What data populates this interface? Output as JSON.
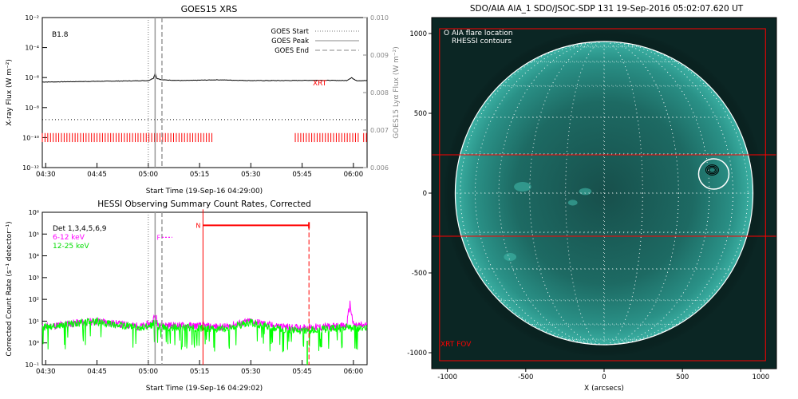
{
  "chart_data": [
    {
      "type": "line",
      "title": "GOES15 XRS",
      "xlabel": "Start Time (19-Sep-16 04:29:00)",
      "ylabel": "X-ray Flux (W m⁻²)",
      "ylabel_right": "GOES15 Lyα Flux (W m⁻²)",
      "y_scale": "log",
      "ylim": [
        1e-12,
        0.01
      ],
      "y_ticks": [
        "10⁻¹²",
        "10⁻¹⁰",
        "10⁻⁸",
        "10⁻⁶",
        "10⁻⁴",
        "10⁻²"
      ],
      "y_ticks_right": [
        "0.006",
        "0.007",
        "0.008",
        "0.009",
        "0.010"
      ],
      "ylim_right": [
        0.006,
        0.01
      ],
      "x_ticks": [
        "04:30",
        "04:45",
        "05:00",
        "05:15",
        "05:30",
        "05:45",
        "06:00"
      ],
      "x_tick_minutes": [
        30,
        45,
        60,
        75,
        90,
        105,
        120
      ],
      "xlim_minutes": [
        29,
        124
      ],
      "annotation_class": "B1.8",
      "annotation_xrt": "XRT",
      "legend": [
        "GOES Start",
        "GOES Peak",
        "GOES End"
      ],
      "legend_placement": "top-right",
      "goes_start_min": 60,
      "goes_peak_min": 62,
      "goes_end_min": 64,
      "xrt_coverage_min": [
        [
          29,
          79
        ],
        [
          103,
          122
        ],
        [
          123,
          124
        ]
      ],
      "series": [
        {
          "values_log10": {
            "x": [
              29,
              35,
              45,
              55,
              60,
              61.5,
              62,
              62.5,
              64,
              70,
              80,
              90,
              100,
              110,
              118,
              119.5,
              120,
              121,
              124
            ],
            "y": [
              -6.3,
              -6.28,
              -6.25,
              -6.22,
              -6.2,
              -6.05,
              -5.7,
              -6.05,
              -6.15,
              -6.2,
              -6.15,
              -6.2,
              -6.2,
              -6.18,
              -6.2,
              -6.0,
              -6.1,
              -6.2,
              -6.2
            ]
          }
        },
        {
          "values_log10": {
            "x": [
              29,
              124
            ],
            "y": [
              -8.8,
              -8.8
            ]
          }
        }
      ]
    },
    {
      "type": "line",
      "title": "HESSI Observing Summary Count Rates, Corrected",
      "xlabel": "Start Time (19-Sep-16 04:29:02)",
      "ylabel": "Corrected Count Rate (s⁻¹ detector⁻¹)",
      "y_scale": "log",
      "ylim": [
        0.1,
        1000000.0
      ],
      "y_ticks": [
        "10⁻¹",
        "10⁰",
        "10¹",
        "10²",
        "10³",
        "10⁴",
        "10⁵",
        "10⁶"
      ],
      "x_ticks": [
        "04:30",
        "04:45",
        "05:00",
        "05:15",
        "05:30",
        "05:45",
        "06:00"
      ],
      "x_tick_minutes": [
        30,
        45,
        60,
        75,
        90,
        105,
        120
      ],
      "xlim_minutes": [
        29,
        124
      ],
      "detectors_label": "Det 1,3,4,5,6,9",
      "flag_F": "F",
      "flag_N": "N",
      "night_start_min": 76,
      "night_end_min": 107,
      "flare_flag_min": [
        64,
        67
      ],
      "goes_start_min": 60,
      "goes_peak_min": 62,
      "goes_end_min": 64,
      "series": [
        {
          "name": "6-12 keV",
          "color": "#ff00ff",
          "values_log10": {
            "x": [
              29,
              38,
              45,
              52,
              58,
              61,
              62,
              63,
              66,
              75,
              82,
              90,
              96,
              102,
              106,
              110,
              118,
              119,
              120,
              124
            ],
            "y": [
              0.72,
              0.9,
              1.0,
              0.85,
              0.75,
              0.9,
              1.25,
              0.85,
              0.8,
              0.78,
              0.72,
              1.0,
              0.8,
              0.7,
              0.7,
              0.72,
              0.78,
              1.8,
              0.8,
              0.8
            ]
          }
        },
        {
          "name": "12-25 keV",
          "color": "#00ff00",
          "values_log10": {
            "x": [
              29,
              38,
              45,
              52,
              58,
              61,
              62,
              63,
              66,
              75,
              82,
              90,
              96,
              102,
              106,
              110,
              118,
              120,
              124
            ],
            "y": [
              0.7,
              0.88,
              0.98,
              0.8,
              0.7,
              0.8,
              0.95,
              0.75,
              0.72,
              0.68,
              0.65,
              0.95,
              0.7,
              0.6,
              0.55,
              0.62,
              0.72,
              0.65,
              0.7
            ]
          }
        }
      ]
    },
    {
      "type": "heatmap",
      "title": "SDO/AIA AIA_1 SDO/JSOC-SDP 131 19-Sep-2016 05:02:07.620 UT",
      "xlabel": "X (arcsecs)",
      "ylabel": "",
      "xlim": [
        -1100,
        1100
      ],
      "ylim": [
        -1100,
        1100
      ],
      "x_ticks": [
        -1000,
        -500,
        0,
        500,
        1000
      ],
      "y_ticks": [
        1000,
        500,
        0,
        -500,
        -1000
      ],
      "grid": true,
      "solar_radius_arcsec": 950,
      "legend": [
        "O AIA flare location",
        "RHESSI contours"
      ],
      "legend_placement": "top-left",
      "aia_flare_location": [
        700,
        120
      ],
      "xrt_fov_label": "XRT FOV",
      "xrt_fov_inner_y": [
        -270,
        240
      ],
      "xrt_fov_outer": [
        -1050,
        1030,
        -1050,
        1030
      ],
      "colors": {
        "disk": "#1b7068",
        "limb": "#ffffff",
        "fov": "#ff0000"
      }
    }
  ]
}
